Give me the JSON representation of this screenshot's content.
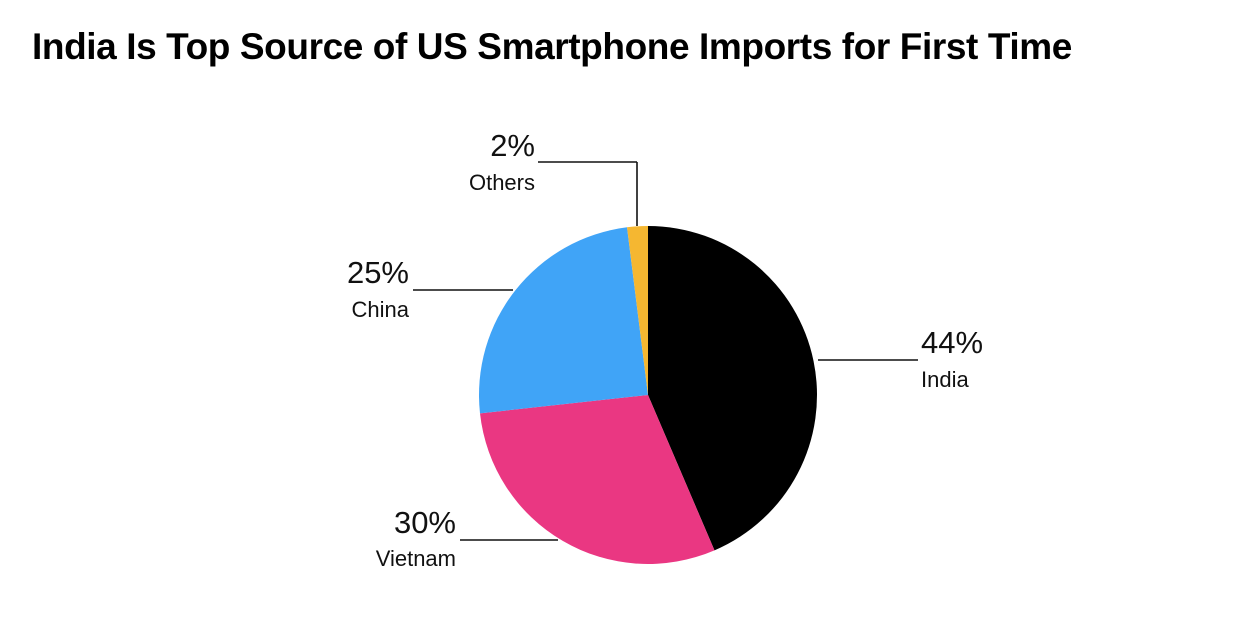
{
  "chart_data": {
    "type": "pie",
    "title": "India Is Top Source of US Smartphone Imports for First Time",
    "slices": [
      {
        "name": "India",
        "value": 44,
        "label": "44%",
        "color": "#000000"
      },
      {
        "name": "Vietnam",
        "value": 30,
        "label": "30%",
        "color": "#EA3782"
      },
      {
        "name": "China",
        "value": 25,
        "label": "25%",
        "color": "#40A4F7"
      },
      {
        "name": "Others",
        "value": 2,
        "label": "2%",
        "color": "#F5B731"
      }
    ]
  }
}
